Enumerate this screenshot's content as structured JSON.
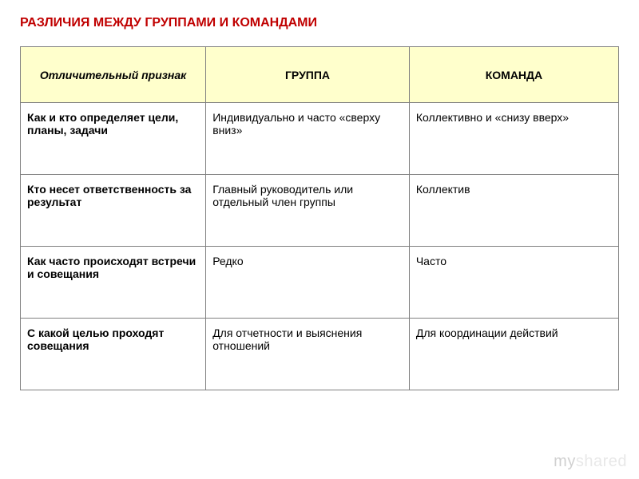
{
  "title": "РАЗЛИЧИЯ МЕЖДУ ГРУППАМИ И КОМАНДАМИ",
  "table": {
    "headers": {
      "col1": "Отличительный признак",
      "col2": "ГРУППА",
      "col3": "КОМАНДА"
    },
    "rows": [
      {
        "feature": "Как и кто определяет цели, планы, задачи",
        "group": "Индивидуально и часто «сверху вниз»",
        "team": "Коллективно и «снизу вверх»"
      },
      {
        "feature": "Кто несет ответственность за результат",
        "group": "Главный руководитель или отдельный член группы",
        "team": "Коллектив"
      },
      {
        "feature": "Как часто происходят встречи и совещания",
        "group": "Редко",
        "team": "Часто"
      },
      {
        "feature": "С какой целью проходят совещания",
        "group": "Для отчетности и выяснения отношений",
        "team": "Для координации действий"
      }
    ]
  },
  "watermark": {
    "part1": "my",
    "part2": "shared"
  },
  "styling": {
    "title_color": "#c00000",
    "header_bg": "#ffffcc",
    "border_color": "#808080",
    "font_family": "Arial",
    "title_fontsize": 16,
    "cell_fontsize": 14,
    "watermark_color": "#d0d0d0"
  }
}
